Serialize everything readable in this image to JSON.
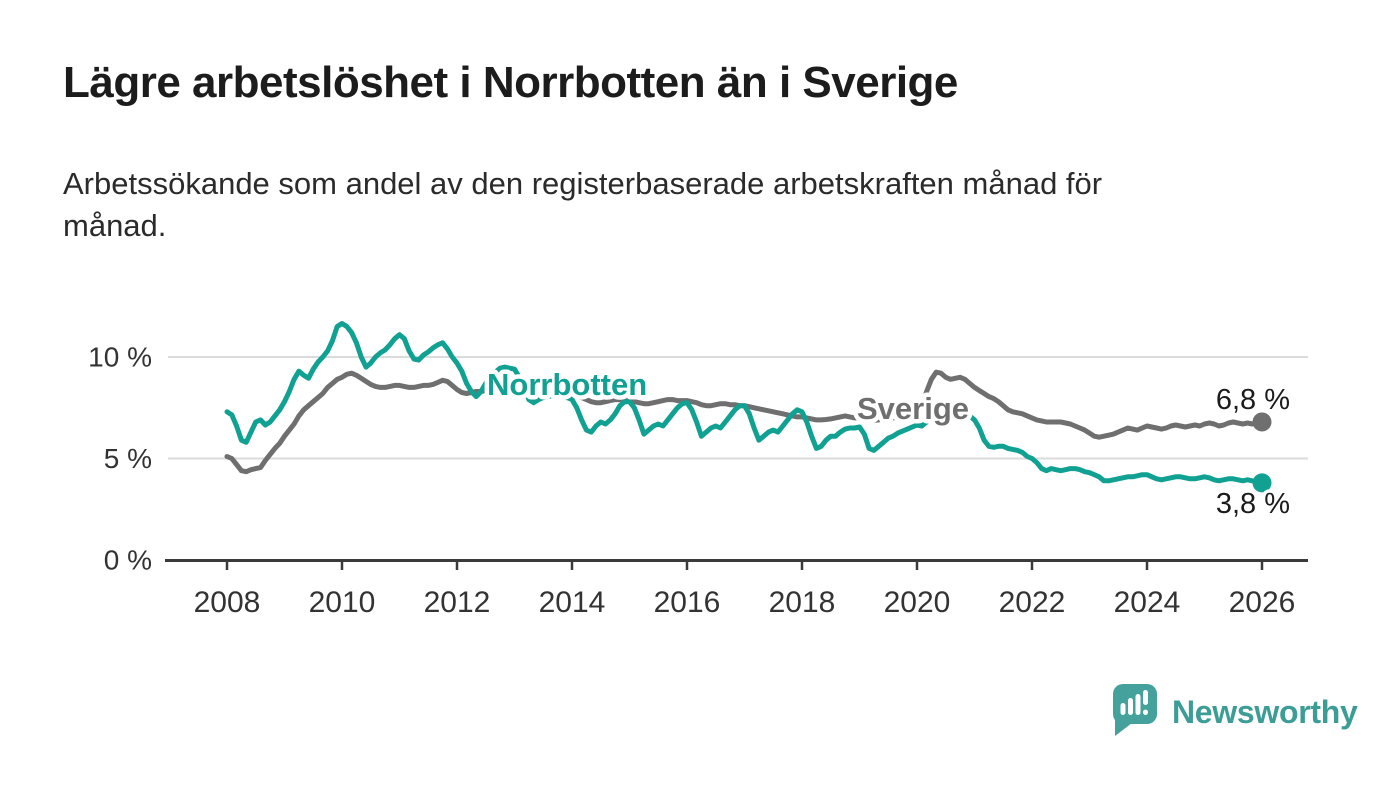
{
  "header": {
    "title": "Lägre arbetslöshet i Norrbotten än i Sverige",
    "subtitle_full": "Arbetssökande som andel av den registerbaserade arbetskraften månad för månad.",
    "subtitle_lines": [
      "Arbetssökande som andel av den registerbaserade arbetskraften månad för",
      "månad."
    ]
  },
  "footer": {
    "brand": "Newsworthy"
  },
  "colors": {
    "title_text": "#1c1c1c",
    "subtitle_text": "#2b2b2b",
    "axis_line": "#3a3a3a",
    "axis_text": "#333333",
    "gridline": "#dbdbdb",
    "background": "#ffffff",
    "norrbotten_teal": "#11a192",
    "sverige_gray": "#6f6f6f",
    "logo_bubble": "#45a19b",
    "logo_text": "#3c9d97"
  },
  "chart_data": {
    "type": "line",
    "title": "Lägre arbetslöshet i Norrbotten än i Sverige",
    "subtitle": "Arbetssökande som andel av den registerbaserade arbetskraften månad för månad.",
    "unit": "%",
    "frequency": "monthly",
    "period_shown": "2008-01 to 2026-01",
    "x_start_year": 2008.0,
    "x_step_years": 0.0833333,
    "grid": "horizontal-only",
    "legend_position": "inline-labels-on-lines",
    "ylim": [
      0,
      12
    ],
    "y_ticks": [
      {
        "value": 0,
        "label": "0 %"
      },
      {
        "value": 5,
        "label": "5 %"
      },
      {
        "value": 10,
        "label": "10 %"
      }
    ],
    "x_ticks": [
      {
        "value": 2008,
        "label": "2008"
      },
      {
        "value": 2010,
        "label": "2010"
      },
      {
        "value": 2012,
        "label": "2012"
      },
      {
        "value": 2014,
        "label": "2014"
      },
      {
        "value": 2016,
        "label": "2016"
      },
      {
        "value": 2018,
        "label": "2018"
      },
      {
        "value": 2020,
        "label": "2020"
      },
      {
        "value": 2022,
        "label": "2022"
      },
      {
        "value": 2024,
        "label": "2024"
      },
      {
        "value": 2026,
        "label": "2026"
      }
    ],
    "series": [
      {
        "name": "Norrbotten",
        "label_text": "Norrbotten",
        "color": "#11a192",
        "end_value": 3.8,
        "end_label": "3,8 %",
        "values": [
          7.3,
          7.15,
          6.6,
          5.9,
          5.8,
          6.3,
          6.8,
          6.9,
          6.65,
          6.8,
          7.1,
          7.4,
          7.8,
          8.3,
          8.9,
          9.3,
          9.1,
          8.95,
          9.4,
          9.75,
          10.0,
          10.3,
          10.8,
          11.5,
          11.65,
          11.5,
          11.2,
          10.7,
          10.0,
          9.5,
          9.7,
          10.0,
          10.2,
          10.35,
          10.6,
          10.9,
          11.1,
          10.9,
          10.3,
          9.9,
          9.85,
          10.1,
          10.25,
          10.45,
          10.6,
          10.7,
          10.4,
          10.0,
          9.7,
          9.3,
          8.7,
          8.3,
          8.05,
          8.3,
          8.7,
          9.0,
          9.25,
          9.45,
          9.5,
          9.45,
          9.4,
          9.0,
          8.5,
          7.9,
          7.75,
          7.9,
          8.0,
          8.05,
          8.1,
          8.1,
          8.05,
          8.0,
          7.9,
          7.5,
          6.9,
          6.4,
          6.3,
          6.6,
          6.8,
          6.7,
          6.9,
          7.2,
          7.6,
          7.8,
          7.8,
          7.5,
          6.9,
          6.2,
          6.4,
          6.6,
          6.7,
          6.6,
          6.9,
          7.2,
          7.5,
          7.7,
          7.75,
          7.4,
          6.8,
          6.1,
          6.3,
          6.5,
          6.6,
          6.5,
          6.8,
          7.1,
          7.4,
          7.6,
          7.6,
          7.2,
          6.5,
          5.9,
          6.1,
          6.3,
          6.4,
          6.3,
          6.6,
          6.9,
          7.2,
          7.4,
          7.3,
          6.8,
          6.1,
          5.5,
          5.6,
          5.9,
          6.1,
          6.1,
          6.3,
          6.45,
          6.5,
          6.5,
          6.55,
          6.2,
          5.5,
          5.4,
          5.6,
          5.8,
          6.0,
          6.1,
          6.25,
          6.35,
          6.45,
          6.55,
          6.65,
          6.6,
          6.8,
          7.2,
          7.5,
          7.7,
          7.8,
          7.75,
          7.6,
          7.4,
          7.2,
          7.1,
          6.9,
          6.5,
          5.9,
          5.6,
          5.55,
          5.6,
          5.6,
          5.5,
          5.45,
          5.4,
          5.3,
          5.1,
          5.0,
          4.8,
          4.5,
          4.4,
          4.5,
          4.45,
          4.4,
          4.45,
          4.5,
          4.5,
          4.45,
          4.35,
          4.3,
          4.2,
          4.1,
          3.9,
          3.9,
          3.95,
          4.0,
          4.05,
          4.1,
          4.1,
          4.15,
          4.2,
          4.2,
          4.1,
          4.0,
          3.95,
          4.0,
          4.05,
          4.1,
          4.1,
          4.05,
          4.0,
          4.0,
          4.05,
          4.1,
          4.05,
          3.95,
          3.9,
          3.95,
          4.0,
          4.0,
          3.95,
          3.9,
          3.95,
          3.9,
          3.85,
          3.8
        ]
      },
      {
        "name": "Sverige",
        "label_text": "Sverige",
        "color": "#6f6f6f",
        "end_value": 6.8,
        "end_label": "6,8 %",
        "values": [
          5.1,
          5.0,
          4.7,
          4.4,
          4.35,
          4.45,
          4.5,
          4.55,
          4.9,
          5.2,
          5.5,
          5.75,
          6.1,
          6.4,
          6.7,
          7.1,
          7.4,
          7.6,
          7.8,
          8.0,
          8.2,
          8.5,
          8.7,
          8.9,
          9.0,
          9.15,
          9.2,
          9.1,
          8.95,
          8.8,
          8.65,
          8.55,
          8.5,
          8.5,
          8.55,
          8.6,
          8.6,
          8.55,
          8.5,
          8.5,
          8.55,
          8.6,
          8.6,
          8.65,
          8.75,
          8.85,
          8.8,
          8.6,
          8.4,
          8.25,
          8.2,
          8.25,
          8.3,
          8.3,
          8.35,
          8.4,
          8.45,
          8.5,
          8.5,
          8.45,
          8.4,
          8.35,
          8.3,
          8.3,
          8.25,
          8.3,
          8.3,
          8.35,
          8.3,
          8.25,
          8.2,
          8.15,
          8.1,
          8.05,
          8.0,
          7.9,
          7.8,
          7.75,
          7.75,
          7.8,
          7.85,
          7.9,
          7.9,
          7.9,
          7.85,
          7.8,
          7.75,
          7.7,
          7.7,
          7.75,
          7.8,
          7.85,
          7.9,
          7.9,
          7.85,
          7.85,
          7.85,
          7.8,
          7.75,
          7.65,
          7.6,
          7.6,
          7.65,
          7.7,
          7.7,
          7.65,
          7.65,
          7.6,
          7.6,
          7.55,
          7.5,
          7.45,
          7.4,
          7.35,
          7.3,
          7.25,
          7.2,
          7.15,
          7.1,
          7.05,
          7.05,
          7.0,
          6.95,
          6.9,
          6.9,
          6.92,
          6.95,
          7.0,
          7.05,
          7.1,
          7.05,
          7.0,
          7.0,
          6.9,
          6.85,
          6.88,
          6.9,
          6.93,
          6.95,
          7.0,
          7.0,
          6.95,
          6.95,
          7.0,
          7.2,
          7.5,
          8.3,
          8.9,
          9.25,
          9.2,
          9.0,
          8.9,
          8.95,
          9.0,
          8.9,
          8.7,
          8.5,
          8.35,
          8.2,
          8.05,
          7.95,
          7.8,
          7.6,
          7.4,
          7.3,
          7.25,
          7.2,
          7.1,
          7.0,
          6.9,
          6.85,
          6.8,
          6.8,
          6.8,
          6.8,
          6.75,
          6.7,
          6.6,
          6.5,
          6.4,
          6.25,
          6.1,
          6.05,
          6.1,
          6.15,
          6.2,
          6.3,
          6.4,
          6.5,
          6.45,
          6.4,
          6.5,
          6.6,
          6.55,
          6.5,
          6.45,
          6.5,
          6.6,
          6.65,
          6.6,
          6.55,
          6.6,
          6.65,
          6.6,
          6.7,
          6.75,
          6.7,
          6.6,
          6.65,
          6.75,
          6.8,
          6.75,
          6.7,
          6.75,
          6.7,
          6.75,
          6.8
        ]
      }
    ]
  }
}
